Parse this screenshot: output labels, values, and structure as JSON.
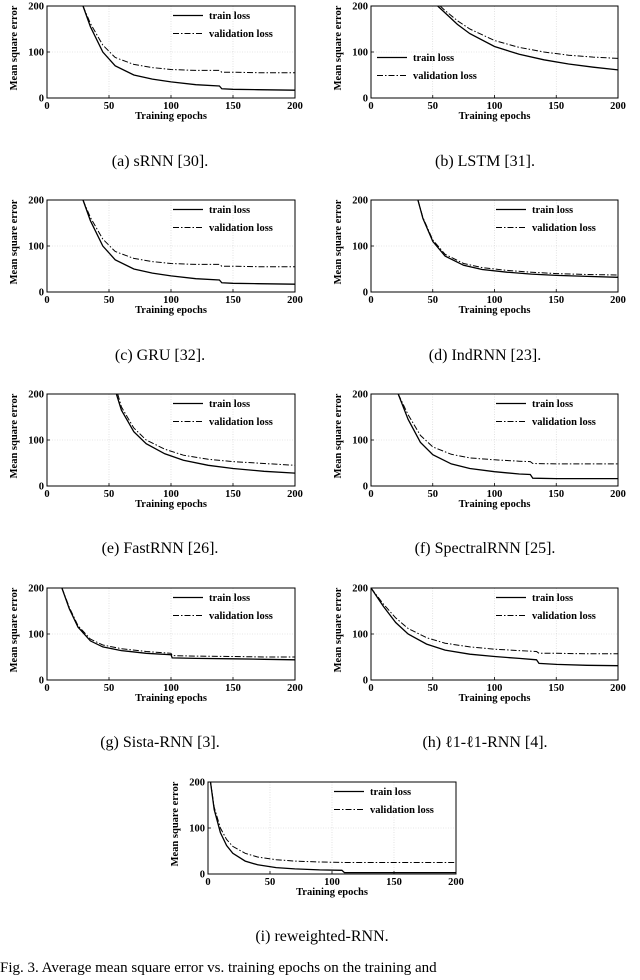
{
  "chart_data": [
    {
      "type": "line",
      "caption": "(a)  sRNN [30].",
      "xlabel": "Training epochs",
      "ylabel": "Mean square error",
      "xlim": [
        0,
        200
      ],
      "ylim": [
        0,
        200
      ],
      "xticks": [
        0,
        50,
        100,
        150,
        200
      ],
      "yticks": [
        0,
        100,
        200
      ],
      "legend_position": "top-right",
      "series": [
        {
          "name": "train loss",
          "style": "solid",
          "x": [
            29,
            35,
            45,
            55,
            70,
            85,
            100,
            120,
            139,
            141,
            150,
            170,
            200
          ],
          "y": [
            200,
            155,
            100,
            70,
            50,
            41,
            35,
            29,
            26,
            20,
            19,
            18,
            17
          ]
        },
        {
          "name": "validation loss",
          "style": "dashdot",
          "x": [
            29,
            35,
            45,
            55,
            70,
            85,
            100,
            120,
            139,
            141,
            150,
            170,
            200
          ],
          "y": [
            200,
            162,
            115,
            88,
            73,
            66,
            62,
            60,
            60,
            56,
            56,
            55,
            55
          ]
        }
      ]
    },
    {
      "type": "line",
      "caption": "(b)  LSTM [31].",
      "xlabel": "Training epochs",
      "ylabel": "Mean square error",
      "xlim": [
        0,
        200
      ],
      "ylim": [
        0,
        200
      ],
      "xticks": [
        0,
        50,
        100,
        150,
        200
      ],
      "yticks": [
        0,
        100,
        200
      ],
      "legend_position": "middle-left",
      "series": [
        {
          "name": "train loss",
          "style": "solid",
          "x": [
            54,
            60,
            70,
            80,
            100,
            120,
            140,
            160,
            180,
            200
          ],
          "y": [
            200,
            185,
            160,
            140,
            112,
            95,
            83,
            74,
            67,
            61
          ]
        },
        {
          "name": "validation loss",
          "style": "dashdot",
          "x": [
            56,
            60,
            70,
            80,
            100,
            120,
            140,
            160,
            180,
            200
          ],
          "y": [
            200,
            190,
            168,
            150,
            125,
            110,
            100,
            93,
            89,
            86
          ]
        }
      ]
    },
    {
      "type": "line",
      "caption": "(c)  GRU [32].",
      "xlabel": "Training epochs",
      "ylabel": "Mean square error",
      "xlim": [
        0,
        200
      ],
      "ylim": [
        0,
        200
      ],
      "xticks": [
        0,
        50,
        100,
        150,
        200
      ],
      "yticks": [
        0,
        100,
        200
      ],
      "legend_position": "top-right",
      "series": [
        {
          "name": "train loss",
          "style": "solid",
          "x": [
            29,
            35,
            45,
            55,
            70,
            85,
            100,
            120,
            139,
            141,
            150,
            170,
            200
          ],
          "y": [
            200,
            155,
            100,
            70,
            50,
            41,
            35,
            29,
            26,
            20,
            19,
            18,
            17
          ]
        },
        {
          "name": "validation loss",
          "style": "dashdot",
          "x": [
            29,
            35,
            45,
            55,
            70,
            85,
            100,
            120,
            139,
            141,
            150,
            170,
            200
          ],
          "y": [
            200,
            162,
            115,
            88,
            73,
            66,
            62,
            60,
            60,
            56,
            56,
            55,
            55
          ]
        }
      ]
    },
    {
      "type": "line",
      "caption": "(d)  IndRNN [23].",
      "xlabel": "Training epochs",
      "ylabel": "Mean square error",
      "xlim": [
        0,
        200
      ],
      "ylim": [
        0,
        200
      ],
      "xticks": [
        0,
        50,
        100,
        150,
        200
      ],
      "yticks": [
        0,
        100,
        200
      ],
      "legend_position": "top-right",
      "series": [
        {
          "name": "train loss",
          "style": "solid",
          "x": [
            38,
            42,
            50,
            60,
            75,
            90,
            110,
            130,
            150,
            175,
            200
          ],
          "y": [
            200,
            160,
            110,
            78,
            58,
            49,
            43,
            39,
            36,
            34,
            32
          ]
        },
        {
          "name": "validation loss",
          "style": "dashdot",
          "x": [
            38,
            42,
            50,
            60,
            75,
            90,
            110,
            130,
            150,
            175,
            200
          ],
          "y": [
            200,
            162,
            113,
            82,
            62,
            53,
            47,
            43,
            40,
            38,
            37
          ]
        }
      ]
    },
    {
      "type": "line",
      "caption": "(e)  FastRNN [26].",
      "xlabel": "Training epochs",
      "ylabel": "Mean square error",
      "xlim": [
        0,
        200
      ],
      "ylim": [
        0,
        200
      ],
      "xticks": [
        0,
        50,
        100,
        150,
        200
      ],
      "yticks": [
        0,
        100,
        200
      ],
      "legend_position": "top-right",
      "series": [
        {
          "name": "train loss",
          "style": "solid",
          "x": [
            56,
            60,
            70,
            80,
            95,
            110,
            130,
            150,
            175,
            200
          ],
          "y": [
            200,
            165,
            118,
            92,
            70,
            56,
            45,
            38,
            32,
            28
          ]
        },
        {
          "name": "validation loss",
          "style": "dashdot",
          "x": [
            57,
            60,
            70,
            80,
            95,
            110,
            130,
            150,
            175,
            200
          ],
          "y": [
            200,
            172,
            126,
            100,
            80,
            67,
            58,
            53,
            49,
            45
          ]
        }
      ]
    },
    {
      "type": "line",
      "caption": "(f)  SpectralRNN [25].",
      "xlabel": "Training epochs",
      "ylabel": "Mean square error",
      "xlim": [
        0,
        200
      ],
      "ylim": [
        0,
        200
      ],
      "xticks": [
        0,
        50,
        100,
        150,
        200
      ],
      "yticks": [
        0,
        100,
        200
      ],
      "legend_position": "top-right",
      "series": [
        {
          "name": "train loss",
          "style": "solid",
          "x": [
            22,
            30,
            40,
            50,
            65,
            80,
            100,
            120,
            129,
            131,
            150,
            175,
            200
          ],
          "y": [
            200,
            145,
            95,
            68,
            48,
            38,
            31,
            26,
            25,
            17,
            16,
            16,
            16
          ]
        },
        {
          "name": "validation loss",
          "style": "dashdot",
          "x": [
            22,
            30,
            40,
            50,
            65,
            80,
            100,
            120,
            129,
            131,
            150,
            175,
            200
          ],
          "y": [
            200,
            155,
            110,
            85,
            69,
            61,
            57,
            54,
            53,
            49,
            48,
            48,
            48
          ]
        }
      ]
    },
    {
      "type": "line",
      "caption": "(g)  Sista-RNN [3].",
      "xlabel": "Training epochs",
      "ylabel": "Mean square error",
      "xlim": [
        0,
        200
      ],
      "ylim": [
        0,
        200
      ],
      "xticks": [
        0,
        50,
        100,
        150,
        200
      ],
      "yticks": [
        0,
        100,
        200
      ],
      "legend_position": "top-right",
      "series": [
        {
          "name": "train loss",
          "style": "solid",
          "x": [
            12,
            18,
            25,
            35,
            45,
            60,
            80,
            100,
            101,
            120,
            150,
            175,
            200
          ],
          "y": [
            200,
            155,
            115,
            85,
            72,
            64,
            58,
            55,
            48,
            47,
            46,
            45,
            44
          ]
        },
        {
          "name": "validation loss",
          "style": "dashdot",
          "x": [
            12,
            18,
            25,
            35,
            45,
            60,
            80,
            100,
            101,
            120,
            150,
            175,
            200
          ],
          "y": [
            200,
            158,
            118,
            89,
            76,
            68,
            62,
            58,
            53,
            52,
            51,
            50,
            50
          ]
        }
      ]
    },
    {
      "type": "line",
      "caption": "(h)  ℓ1-ℓ1-RNN [4].",
      "xlabel": "Training epochs",
      "ylabel": "Mean square error",
      "xlim": [
        0,
        200
      ],
      "ylim": [
        0,
        200
      ],
      "xticks": [
        0,
        50,
        100,
        150,
        200
      ],
      "yticks": [
        0,
        100,
        200
      ],
      "legend_position": "top-right",
      "series": [
        {
          "name": "train loss",
          "style": "solid",
          "x": [
            0,
            10,
            20,
            30,
            45,
            60,
            80,
            100,
            120,
            134,
            136,
            150,
            175,
            200
          ],
          "y": [
            200,
            160,
            125,
            100,
            78,
            65,
            56,
            51,
            47,
            44,
            36,
            34,
            32,
            31
          ]
        },
        {
          "name": "validation loss",
          "style": "dashdot",
          "x": [
            0,
            10,
            20,
            30,
            45,
            60,
            80,
            100,
            120,
            134,
            136,
            150,
            175,
            200
          ],
          "y": [
            200,
            165,
            135,
            112,
            92,
            80,
            72,
            67,
            64,
            62,
            58,
            58,
            57,
            57
          ]
        }
      ]
    },
    {
      "type": "line",
      "caption": "(i)  reweighted-RNN.",
      "xlabel": "Training epochs",
      "ylabel": "Mean square error",
      "xlim": [
        0,
        200
      ],
      "ylim": [
        0,
        200
      ],
      "xticks": [
        0,
        50,
        100,
        150,
        200
      ],
      "yticks": [
        0,
        100,
        200
      ],
      "legend_position": "top-right",
      "series": [
        {
          "name": "train loss",
          "style": "solid",
          "x": [
            2,
            5,
            10,
            15,
            20,
            30,
            40,
            55,
            70,
            90,
            108,
            110,
            130,
            160,
            200
          ],
          "y": [
            200,
            140,
            90,
            62,
            45,
            28,
            20,
            14,
            11,
            9,
            8,
            3,
            3,
            3,
            3
          ]
        },
        {
          "name": "validation loss",
          "style": "dashdot",
          "x": [
            2,
            5,
            10,
            15,
            20,
            30,
            40,
            55,
            70,
            90,
            110,
            130,
            160,
            200
          ],
          "y": [
            200,
            145,
            100,
            75,
            60,
            45,
            37,
            31,
            28,
            26,
            25,
            25,
            25,
            25
          ]
        }
      ]
    }
  ],
  "figure_caption": "Fig. 3.   Average mean square error vs. training epochs on the training and"
}
